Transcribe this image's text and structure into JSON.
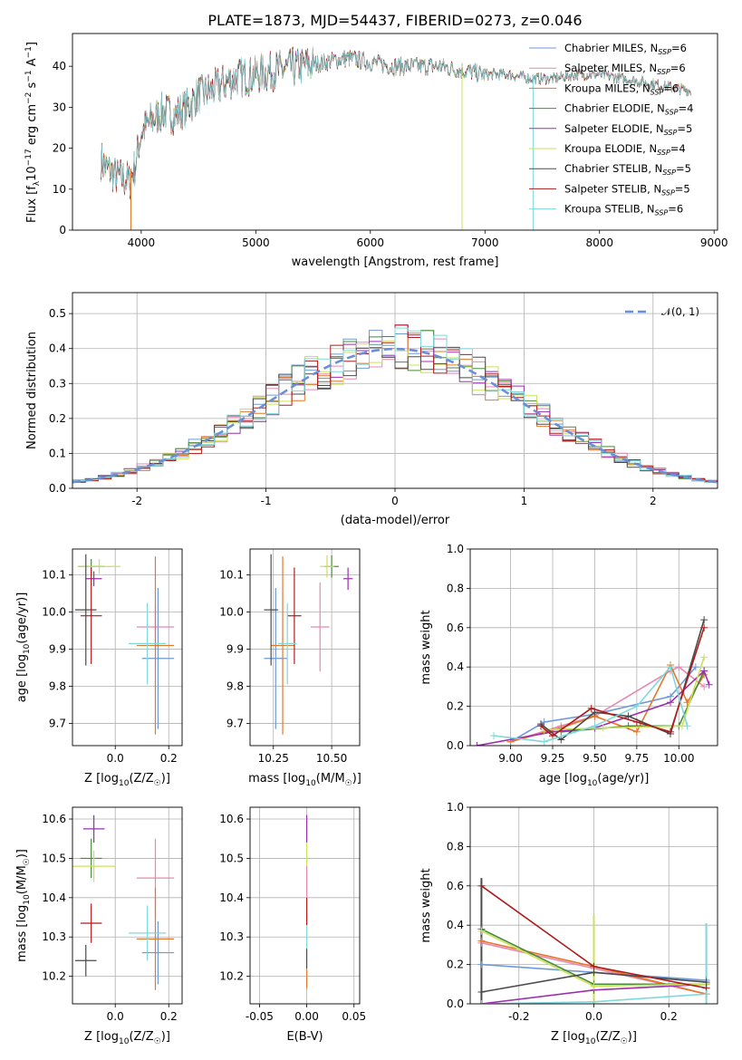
{
  "chart_data": [
    {
      "id": "spectrum",
      "type": "line",
      "title": "PLATE=1873, MJD=54437, FIBERID=0273, z=0.046",
      "xlabel": "wavelength [Angstrom, rest frame]",
      "ylabel": "Flux [f_λ10^-17 erg cm^-2 s^-1 A^-1]",
      "xlim": [
        3400,
        9030
      ],
      "ylim": [
        0,
        48
      ],
      "xticks": [
        4000,
        5000,
        6000,
        7000,
        8000,
        9000
      ],
      "yticks": [
        0,
        10,
        20,
        30,
        40
      ],
      "grid": false,
      "legend_position": "top-right",
      "series": [
        {
          "name": "Chabrier MILES, N_SSP=6",
          "color": "#6f9ad9"
        },
        {
          "name": "Salpeter MILES, N_SSP=6",
          "color": "#e887b0"
        },
        {
          "name": "Kroupa MILES, N_SSP=6",
          "color": "#e3772a"
        },
        {
          "name": "Chabrier ELODIE, N_SSP=4",
          "color": "#4a8b3a"
        },
        {
          "name": "Salpeter ELODIE, N_SSP=5",
          "color": "#9c2fb0"
        },
        {
          "name": "Kroupa ELODIE, N_SSP=4",
          "color": "#c9e25a"
        },
        {
          "name": "Chabrier STELIB, N_SSP=5",
          "color": "#4a4a4a"
        },
        {
          "name": "Salpeter STELIB, N_SSP=5",
          "color": "#b01b1b"
        },
        {
          "name": "Kroupa STELIB, N_SSP=6",
          "color": "#7ed8dc"
        }
      ],
      "continuum": {
        "x": [
          3650,
          3700,
          3800,
          3900,
          3950,
          4000,
          4100,
          4200,
          4300,
          4400,
          4500,
          4600,
          4800,
          5000,
          5200,
          5400,
          5600,
          5800,
          6000,
          6200,
          6400,
          6600,
          6800,
          7000,
          7200,
          7400,
          7600,
          7800,
          8000,
          8200,
          8400,
          8600,
          8800
        ],
        "y": [
          17,
          15,
          13,
          12,
          16,
          24,
          27,
          29,
          28,
          30,
          33,
          34,
          37,
          38,
          39,
          40,
          41,
          42,
          41,
          40,
          40,
          40,
          39,
          38,
          38,
          37,
          37,
          38,
          38,
          37,
          36,
          35,
          34
        ]
      },
      "spikes": [
        {
          "x": 3910,
          "ybottom": 0,
          "ytop": 15
        },
        {
          "x": 6800,
          "ybottom": 0,
          "ytop": 40
        },
        {
          "x": 7420,
          "ybottom": 0,
          "ytop": 38
        }
      ]
    },
    {
      "id": "residuals",
      "type": "step",
      "xlabel": "(data-model)/error",
      "ylabel": "Normed distribution",
      "xlim": [
        -2.5,
        2.5
      ],
      "ylim": [
        0,
        0.56
      ],
      "xticks": [
        -2,
        -1,
        0,
        1,
        2
      ],
      "yticks": [
        0.0,
        0.1,
        0.2,
        0.3,
        0.4,
        0.5
      ],
      "grid": true,
      "legend_position": "top-right",
      "reference_curve": {
        "name": "𝒩(0, 1)",
        "color": "#6b8fd6",
        "mean": 0,
        "sigma": 1
      },
      "bin_width": 0.1
    },
    {
      "id": "age-vs-Z",
      "type": "errorbar",
      "xlabel": "Z [log10(Z/Z☉)]",
      "ylabel": "age [log10(age/yr)]",
      "xlim": [
        -0.16,
        0.25
      ],
      "ylim": [
        9.64,
        10.17
      ],
      "xticks": [
        0.0,
        0.2
      ],
      "yticks": [
        9.7,
        9.8,
        9.9,
        10.0,
        10.1
      ],
      "grid": true,
      "points": [
        {
          "x": 0.16,
          "y": 9.875,
          "xerr": 0.06,
          "yerr": 0.19,
          "color": "#6f9ad9"
        },
        {
          "x": 0.15,
          "y": 9.96,
          "xerr": 0.07,
          "yerr": 0.06,
          "color": "#e887b0"
        },
        {
          "x": 0.15,
          "y": 9.91,
          "xerr": 0.07,
          "yerr": 0.24,
          "color": "#e3772a"
        },
        {
          "x": -0.09,
          "y": 10.123,
          "xerr": 0.05,
          "yerr": 0.02,
          "color": "#4a8b3a"
        },
        {
          "x": -0.08,
          "y": 10.09,
          "xerr": 0.03,
          "yerr": 0.02,
          "color": "#9c2fb0"
        },
        {
          "x": -0.06,
          "y": 10.123,
          "xerr": 0.08,
          "yerr": 0.02,
          "color": "#c9e25a"
        },
        {
          "x": -0.11,
          "y": 10.006,
          "xerr": 0.04,
          "yerr": 0.15,
          "color": "#4a4a4a"
        },
        {
          "x": -0.09,
          "y": 9.99,
          "xerr": 0.04,
          "yerr": 0.13,
          "color": "#b01b1b"
        },
        {
          "x": 0.12,
          "y": 9.915,
          "xerr": 0.07,
          "yerr": 0.11,
          "color": "#7ed8dc"
        }
      ]
    },
    {
      "id": "age-vs-mass",
      "type": "errorbar",
      "xlabel": "mass [log10(M/M☉)]",
      "ylabel": "",
      "xlim": [
        10.15,
        10.62
      ],
      "ylim": [
        9.64,
        10.17
      ],
      "xticks": [
        10.25,
        10.5
      ],
      "yticks": [
        9.7,
        9.8,
        9.9,
        10.0,
        10.1
      ],
      "grid": true,
      "points": [
        {
          "x": 10.26,
          "y": 9.875,
          "xerr": 0.05,
          "yerr": 0.19,
          "color": "#6f9ad9"
        },
        {
          "x": 10.45,
          "y": 9.96,
          "xerr": 0.04,
          "yerr": 0.12,
          "color": "#e887b0"
        },
        {
          "x": 10.29,
          "y": 9.91,
          "xerr": 0.05,
          "yerr": 0.24,
          "color": "#e3772a"
        },
        {
          "x": 10.5,
          "y": 10.123,
          "xerr": 0.03,
          "yerr": 0.03,
          "color": "#4a8b3a"
        },
        {
          "x": 10.57,
          "y": 10.09,
          "xerr": 0.02,
          "yerr": 0.03,
          "color": "#9c2fb0"
        },
        {
          "x": 10.48,
          "y": 10.123,
          "xerr": 0.03,
          "yerr": 0.03,
          "color": "#c9e25a"
        },
        {
          "x": 10.24,
          "y": 10.006,
          "xerr": 0.03,
          "yerr": 0.15,
          "color": "#4a4a4a"
        },
        {
          "x": 10.34,
          "y": 9.99,
          "xerr": 0.03,
          "yerr": 0.13,
          "color": "#b01b1b"
        },
        {
          "x": 10.31,
          "y": 9.915,
          "xerr": 0.04,
          "yerr": 0.11,
          "color": "#7ed8dc"
        }
      ]
    },
    {
      "id": "massweight-vs-age",
      "type": "line",
      "xlabel": "age [log10(age/yr)]",
      "ylabel": "mass weight",
      "xlim": [
        8.76,
        10.23
      ],
      "ylim": [
        0.0,
        1.0
      ],
      "xticks": [
        9.0,
        9.25,
        9.5,
        9.75,
        10.0
      ],
      "yticks": [
        0.0,
        0.2,
        0.4,
        0.6,
        0.8,
        1.0
      ],
      "grid": true,
      "series": [
        {
          "color": "#6f9ad9",
          "x": [
            9.0,
            9.2,
            9.5,
            9.95,
            10.1
          ],
          "y": [
            0.02,
            0.12,
            0.16,
            0.25,
            0.4
          ]
        },
        {
          "color": "#e887b0",
          "x": [
            9.0,
            9.3,
            9.5,
            9.95,
            10.0,
            10.15
          ],
          "y": [
            0.02,
            0.1,
            0.15,
            0.38,
            0.4,
            0.3
          ]
        },
        {
          "color": "#e3772a",
          "x": [
            9.0,
            9.3,
            9.5,
            9.75,
            9.95,
            10.05,
            10.15
          ],
          "y": [
            0.02,
            0.09,
            0.15,
            0.07,
            0.41,
            0.22,
            0.36
          ]
        },
        {
          "color": "#4a8b3a",
          "x": [
            9.3,
            9.7,
            10.0,
            10.15
          ],
          "y": [
            0.07,
            0.1,
            0.1,
            0.38
          ]
        },
        {
          "color": "#9c2fb0",
          "x": [
            8.8,
            9.25,
            9.5,
            9.95,
            10.15,
            10.18
          ],
          "y": [
            0.0,
            0.07,
            0.09,
            0.22,
            0.38,
            0.31
          ]
        },
        {
          "color": "#c9e25a",
          "x": [
            9.2,
            9.55,
            10.02,
            10.15
          ],
          "y": [
            0.08,
            0.09,
            0.1,
            0.45
          ]
        },
        {
          "color": "#4a4a4a",
          "x": [
            9.18,
            9.3,
            9.5,
            9.7,
            9.95,
            10.15
          ],
          "y": [
            0.11,
            0.03,
            0.17,
            0.15,
            0.06,
            0.64
          ]
        },
        {
          "color": "#b01b1b",
          "x": [
            9.18,
            9.25,
            9.48,
            9.75,
            9.95,
            10.15
          ],
          "y": [
            0.1,
            0.05,
            0.19,
            0.12,
            0.07,
            0.6
          ]
        },
        {
          "color": "#7ed8dc",
          "x": [
            8.9,
            9.2,
            9.5,
            9.75,
            9.95,
            10.05
          ],
          "y": [
            0.05,
            0.02,
            0.1,
            0.2,
            0.4,
            0.1
          ]
        }
      ]
    },
    {
      "id": "mass-vs-Z",
      "type": "errorbar",
      "xlabel": "Z [log10(Z/Z☉)]",
      "ylabel": "mass [log10(M/M☉)]",
      "xlim": [
        -0.16,
        0.25
      ],
      "ylim": [
        10.13,
        10.63
      ],
      "xticks": [
        0.0,
        0.2
      ],
      "yticks": [
        10.2,
        10.3,
        10.4,
        10.5,
        10.6
      ],
      "grid": true,
      "points": [
        {
          "x": 0.16,
          "y": 10.26,
          "xerr": 0.06,
          "yerr": 0.08,
          "color": "#6f9ad9"
        },
        {
          "x": 0.15,
          "y": 10.45,
          "xerr": 0.07,
          "yerr": 0.1,
          "color": "#e887b0"
        },
        {
          "x": 0.15,
          "y": 10.295,
          "xerr": 0.07,
          "yerr": 0.13,
          "color": "#e3772a"
        },
        {
          "x": -0.09,
          "y": 10.5,
          "xerr": 0.04,
          "yerr": 0.05,
          "color": "#4a8b3a"
        },
        {
          "x": -0.08,
          "y": 10.575,
          "xerr": 0.04,
          "yerr": 0.035,
          "color": "#9c2fb0"
        },
        {
          "x": -0.08,
          "y": 10.48,
          "xerr": 0.08,
          "yerr": 0.04,
          "color": "#c9e25a"
        },
        {
          "x": -0.11,
          "y": 10.24,
          "xerr": 0.04,
          "yerr": 0.04,
          "color": "#4a4a4a"
        },
        {
          "x": -0.09,
          "y": 10.335,
          "xerr": 0.04,
          "yerr": 0.05,
          "color": "#b01b1b"
        },
        {
          "x": 0.12,
          "y": 10.31,
          "xerr": 0.07,
          "yerr": 0.07,
          "color": "#7ed8dc"
        }
      ]
    },
    {
      "id": "mass-vs-EBV",
      "type": "errorbar",
      "xlabel": "E(B-V)",
      "ylabel": "",
      "xlim": [
        -0.06,
        0.056
      ],
      "ylim": [
        10.13,
        10.63
      ],
      "xticks": [
        -0.05,
        0.0,
        0.05
      ],
      "yticks": [
        10.2,
        10.3,
        10.4,
        10.5,
        10.6
      ],
      "grid": true,
      "segments": [
        {
          "x": 0.0,
          "y1": 10.54,
          "y2": 10.61,
          "color": "#9c2fb0"
        },
        {
          "x": 0.0,
          "y1": 10.48,
          "y2": 10.54,
          "color": "#c9e25a"
        },
        {
          "x": 0.0,
          "y1": 10.4,
          "y2": 10.48,
          "color": "#e887b0"
        },
        {
          "x": 0.0,
          "y1": 10.33,
          "y2": 10.4,
          "color": "#b01b1b"
        },
        {
          "x": 0.0,
          "y1": 10.27,
          "y2": 10.33,
          "color": "#7ed8dc"
        },
        {
          "x": 0.0,
          "y1": 10.22,
          "y2": 10.27,
          "color": "#4a4a4a"
        },
        {
          "x": 0.0,
          "y1": 10.17,
          "y2": 10.22,
          "color": "#e3772a"
        }
      ]
    },
    {
      "id": "massweight-vs-Z",
      "type": "line",
      "xlabel": "Z [log10(Z/Z☉)]",
      "ylabel": "mass weight",
      "xlim": [
        -0.33,
        0.33
      ],
      "ylim": [
        0.0,
        1.0
      ],
      "xticks": [
        -0.2,
        0.0,
        0.2
      ],
      "yticks": [
        0.0,
        0.2,
        0.4,
        0.6,
        0.8,
        1.0
      ],
      "grid": true,
      "series": [
        {
          "color": "#6f9ad9",
          "x": [
            -0.3,
            0.0,
            0.3
          ],
          "y": [
            0.2,
            0.16,
            0.12
          ]
        },
        {
          "color": "#e887b0",
          "x": [
            -0.3,
            0.0,
            0.3
          ],
          "y": [
            0.31,
            0.18,
            0.05
          ]
        },
        {
          "color": "#e3772a",
          "x": [
            -0.3,
            0.0,
            0.3
          ],
          "y": [
            0.32,
            0.19,
            0.05
          ]
        },
        {
          "color": "#4a8b3a",
          "x": [
            -0.3,
            0.0,
            0.3
          ],
          "y": [
            0.38,
            0.1,
            0.1
          ]
        },
        {
          "color": "#9c2fb0",
          "x": [
            -0.3,
            0.0,
            0.3
          ],
          "y": [
            0.0,
            0.07,
            0.1
          ]
        },
        {
          "color": "#c9e25a",
          "x": [
            -0.3,
            0.0,
            0.3
          ],
          "y": [
            0.37,
            0.09,
            0.1
          ]
        },
        {
          "color": "#4a4a4a",
          "x": [
            -0.3,
            0.0,
            0.3
          ],
          "y": [
            0.06,
            0.16,
            0.11
          ]
        },
        {
          "color": "#b01b1b",
          "x": [
            -0.3,
            0.0,
            0.3
          ],
          "y": [
            0.6,
            0.19,
            0.08
          ]
        },
        {
          "color": "#7ed8dc",
          "x": [
            -0.3,
            0.0,
            0.3
          ],
          "y": [
            0.0,
            0.01,
            0.05
          ]
        }
      ],
      "vertical_bars": [
        {
          "x": -0.3,
          "y1": 0.0,
          "y2": 0.64,
          "color": "#4a4a4a"
        },
        {
          "x": 0.0,
          "y1": 0.0,
          "y2": 0.45,
          "color": "#c9e25a"
        },
        {
          "x": 0.3,
          "y1": 0.0,
          "y2": 0.41,
          "color": "#7ed8dc"
        }
      ]
    }
  ]
}
